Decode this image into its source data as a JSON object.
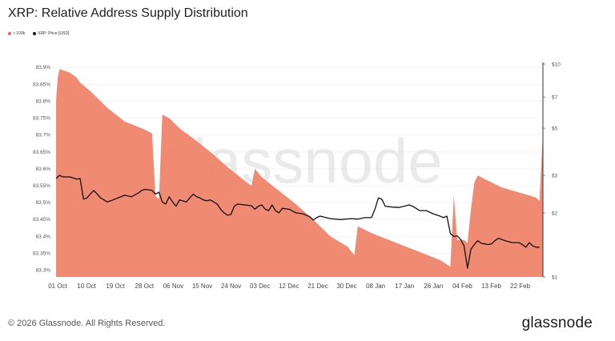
{
  "title": "XRP: Relative Address Supply Distribution",
  "legend": [
    {
      "label": "> 100k",
      "color": "#e8694f"
    },
    {
      "label": "XRP: Price [USD]",
      "color": "#111111"
    }
  ],
  "watermark": "glassnode",
  "footer": {
    "copyright": "© 2026 Glassnode. All Rights Reserved.",
    "logo": "glassnode"
  },
  "chart_data": {
    "type": "area",
    "grid": "horizontal",
    "colors": {
      "area": "#ef8067",
      "price": "#111111"
    },
    "x_ticks": [
      "01 Oct",
      "10 Oct",
      "19 Oct",
      "28 Oct",
      "06 Nov",
      "15 Nov",
      "24 Nov",
      "03 Dec",
      "12 Dec",
      "21 Dec",
      "30 Dec",
      "08 Jan",
      "17 Jan",
      "26 Jan",
      "04 Feb",
      "13 Feb",
      "22 Feb"
    ],
    "y_left": {
      "label": "",
      "ticks": [
        "83.3%",
        "83.35%",
        "83.4%",
        "83.45%",
        "83.5%",
        "83.55%",
        "83.6%",
        "83.65%",
        "83.7%",
        "83.75%",
        "83.8%",
        "83.85%",
        "83.9%"
      ],
      "range": [
        83.28,
        83.91
      ]
    },
    "y_right": {
      "label": "",
      "scale": "log",
      "ticks": [
        "$1",
        "$2",
        "$3",
        "$5",
        "$7",
        "$10"
      ],
      "range": [
        1,
        10
      ]
    },
    "series": [
      {
        "name": "> 100k",
        "axis": "left",
        "points": [
          [
            0,
            83.8
          ],
          [
            0.5,
            83.87
          ],
          [
            1,
            83.895
          ],
          [
            4,
            83.885
          ],
          [
            6,
            83.87
          ],
          [
            7,
            83.855
          ],
          [
            10,
            83.83
          ],
          [
            15,
            83.78
          ],
          [
            20,
            83.74
          ],
          [
            25,
            83.72
          ],
          [
            27,
            83.71
          ],
          [
            28,
            83.705
          ],
          [
            29,
            83.52
          ],
          [
            30,
            83.51
          ],
          [
            31,
            83.76
          ],
          [
            33,
            83.75
          ],
          [
            36,
            83.72
          ],
          [
            40,
            83.69
          ],
          [
            45,
            83.65
          ],
          [
            50,
            83.605
          ],
          [
            55,
            83.565
          ],
          [
            57,
            83.55
          ],
          [
            58,
            83.6
          ],
          [
            60,
            83.575
          ],
          [
            65,
            83.535
          ],
          [
            70,
            83.495
          ],
          [
            75,
            83.45
          ],
          [
            80,
            83.4
          ],
          [
            85,
            83.37
          ],
          [
            87,
            83.345
          ],
          [
            88,
            83.43
          ],
          [
            92,
            83.41
          ],
          [
            97,
            83.39
          ],
          [
            102,
            83.37
          ],
          [
            107,
            83.35
          ],
          [
            112,
            83.33
          ],
          [
            115,
            83.31
          ],
          [
            116,
            83.52
          ],
          [
            117,
            83.39
          ],
          [
            119,
            83.39
          ],
          [
            120,
            83.38
          ],
          [
            121,
            83.48
          ],
          [
            122,
            83.56
          ],
          [
            123,
            83.58
          ],
          [
            125,
            83.57
          ],
          [
            130,
            83.545
          ],
          [
            135,
            83.53
          ],
          [
            140,
            83.515
          ],
          [
            141,
            83.505
          ],
          [
            142,
            83.71
          ]
        ]
      },
      {
        "name": "XRP: Price [USD]",
        "axis": "right",
        "points": [
          [
            0,
            2.9
          ],
          [
            1,
            3.0
          ],
          [
            2,
            2.95
          ],
          [
            4,
            2.95
          ],
          [
            6,
            2.88
          ],
          [
            7,
            2.9
          ],
          [
            8,
            2.32
          ],
          [
            9,
            2.35
          ],
          [
            10,
            2.45
          ],
          [
            11,
            2.55
          ],
          [
            12,
            2.45
          ],
          [
            13,
            2.35
          ],
          [
            14,
            2.3
          ],
          [
            15,
            2.25
          ],
          [
            16,
            2.28
          ],
          [
            18,
            2.35
          ],
          [
            20,
            2.42
          ],
          [
            22,
            2.38
          ],
          [
            24,
            2.48
          ],
          [
            25,
            2.55
          ],
          [
            26,
            2.58
          ],
          [
            28,
            2.55
          ],
          [
            29,
            2.45
          ],
          [
            30,
            2.5
          ],
          [
            31,
            2.25
          ],
          [
            32,
            2.2
          ],
          [
            33,
            2.38
          ],
          [
            34,
            2.25
          ],
          [
            35,
            2.15
          ],
          [
            36,
            2.3
          ],
          [
            38,
            2.25
          ],
          [
            39,
            2.35
          ],
          [
            40,
            2.45
          ],
          [
            41,
            2.38
          ],
          [
            42,
            2.35
          ],
          [
            43,
            2.3
          ],
          [
            44,
            2.28
          ],
          [
            45,
            2.3
          ],
          [
            46,
            2.25
          ],
          [
            47,
            2.2
          ],
          [
            48,
            2.08
          ],
          [
            49,
            2.0
          ],
          [
            50,
            1.95
          ],
          [
            51,
            1.97
          ],
          [
            52,
            2.15
          ],
          [
            53,
            2.2
          ],
          [
            55,
            2.18
          ],
          [
            57,
            2.16
          ],
          [
            58,
            2.08
          ],
          [
            59,
            2.15
          ],
          [
            60,
            2.18
          ],
          [
            61,
            2.08
          ],
          [
            62,
            2.05
          ],
          [
            63,
            2.18
          ],
          [
            64,
            2.05
          ],
          [
            65,
            2.0
          ],
          [
            66,
            2.1
          ],
          [
            68,
            2.08
          ],
          [
            70,
            2.0
          ],
          [
            72,
            1.98
          ],
          [
            74,
            1.92
          ],
          [
            75,
            1.85
          ],
          [
            76,
            1.9
          ],
          [
            77,
            1.93
          ],
          [
            80,
            1.88
          ],
          [
            83,
            1.86
          ],
          [
            86,
            1.88
          ],
          [
            88,
            1.87
          ],
          [
            90,
            1.9
          ],
          [
            92,
            1.9
          ],
          [
            93,
            2.08
          ],
          [
            94,
            2.35
          ],
          [
            95,
            2.32
          ],
          [
            96,
            2.15
          ],
          [
            98,
            2.13
          ],
          [
            100,
            2.12
          ],
          [
            103,
            2.18
          ],
          [
            104,
            2.15
          ],
          [
            106,
            2.05
          ],
          [
            108,
            2.05
          ],
          [
            110,
            1.98
          ],
          [
            112,
            1.93
          ],
          [
            113,
            1.9
          ],
          [
            114,
            1.93
          ],
          [
            115,
            1.6
          ],
          [
            116,
            1.55
          ],
          [
            117,
            1.56
          ],
          [
            118,
            1.5
          ],
          [
            119,
            1.4
          ],
          [
            120,
            1.1
          ],
          [
            121,
            1.35
          ],
          [
            122,
            1.42
          ],
          [
            123,
            1.48
          ],
          [
            124,
            1.44
          ],
          [
            125,
            1.43
          ],
          [
            126,
            1.42
          ],
          [
            127,
            1.43
          ],
          [
            128,
            1.48
          ],
          [
            129,
            1.52
          ],
          [
            130,
            1.5
          ],
          [
            131,
            1.48
          ],
          [
            133,
            1.45
          ],
          [
            135,
            1.45
          ],
          [
            136,
            1.42
          ],
          [
            137,
            1.38
          ],
          [
            138,
            1.45
          ],
          [
            139,
            1.4
          ],
          [
            140,
            1.38
          ],
          [
            141,
            1.38
          ]
        ]
      }
    ]
  }
}
